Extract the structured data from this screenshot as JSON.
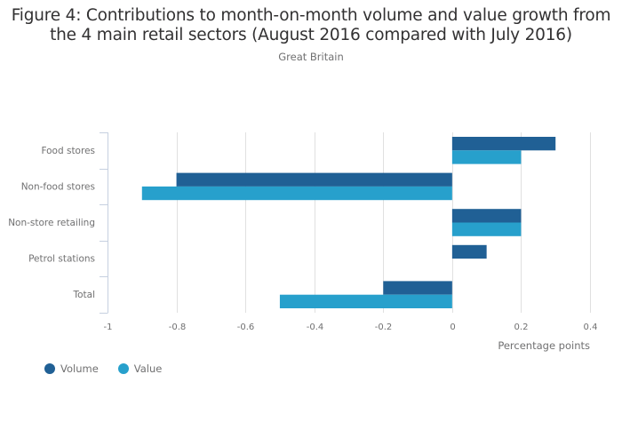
{
  "chart_data": {
    "type": "bar",
    "orientation": "horizontal",
    "title": "Figure 4: Contributions to month-on-month volume and value growth from the 4 main retail sectors (August 2016 compared with July 2016)",
    "title_lines": [
      "Figure 4: Contributions to month-on-month volume and value growth from",
      "the 4 main retail sectors (August 2016 compared with July 2016)"
    ],
    "subtitle": "Great Britain",
    "categories": [
      "Food stores",
      "Non-food stores",
      "Non-store retailing",
      "Petrol stations",
      "Total"
    ],
    "series": [
      {
        "name": "Volume",
        "color": "#206095",
        "values": [
          0.3,
          -0.8,
          0.2,
          0.1,
          -0.2
        ]
      },
      {
        "name": "Value",
        "color": "#27a0cc",
        "values": [
          0.2,
          -0.9,
          0.2,
          0.0,
          -0.5
        ]
      }
    ],
    "xlabel": "Percentage points",
    "ylabel": "",
    "xlim": [
      -1,
      0.4
    ],
    "xticks": [
      -1,
      -0.8,
      -0.6,
      -0.4,
      -0.2,
      0,
      0.2,
      0.4
    ],
    "xtick_labels": [
      "-1",
      "-0.8",
      "-0.6",
      "-0.4",
      "-0.2",
      "0",
      "0.2",
      "0.4"
    ],
    "grid": true,
    "legend_position": "bottom-left"
  }
}
